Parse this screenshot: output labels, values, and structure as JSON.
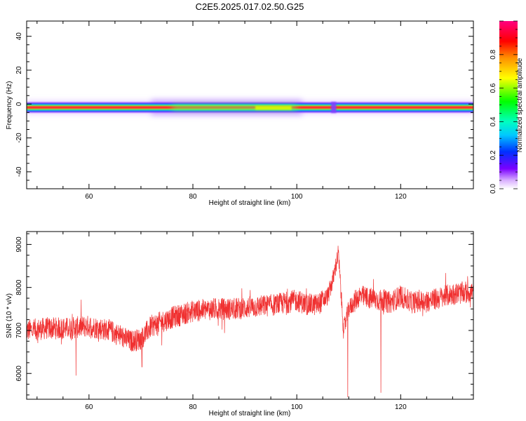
{
  "title": "C2E5.2025.017.02.50.G25",
  "chart_data": [
    {
      "type": "heatmap",
      "xlabel": "Height of straight line (km)",
      "ylabel": "Frequency (Hz)",
      "xlim": [
        48,
        134
      ],
      "ylim": [
        -50,
        49
      ],
      "x_ticks": [
        60,
        80,
        100,
        120
      ],
      "y_ticks": [
        -40,
        -20,
        0,
        20,
        40
      ],
      "grid": false,
      "colorbar": {
        "label": "Normalized spectral amplitude",
        "range": [
          0,
          1
        ],
        "ticks": [
          0.0,
          0.2,
          0.4,
          0.6,
          0.8
        ],
        "tick_labels": [
          "0.0",
          "0.2",
          "0.4",
          "0.6",
          "0.8"
        ],
        "colormap": "hsv-rainbow (white, violet, blue, cyan, green, yellow, orange, red, magenta)"
      },
      "band": {
        "center_frequency_hz": -2,
        "half_width_hz": 2.5,
        "peak_amplitude": 0.95,
        "notes": "narrow high-amplitude line near -2 Hz across all heights; broader low-amplitude spread between ~75 and ~100 km"
      }
    },
    {
      "type": "line",
      "xlabel": "Height of straight line (km)",
      "ylabel": "SNR (10 * v/v)",
      "xlim": [
        48,
        134
      ],
      "ylim": [
        5400,
        9300
      ],
      "x_ticks": [
        60,
        80,
        100,
        120
      ],
      "y_ticks": [
        6000,
        7000,
        8000,
        9000
      ],
      "grid": false,
      "series": [
        {
          "color": "#f03030",
          "x": [
            48,
            52,
            56,
            60,
            64,
            68,
            70,
            72,
            76,
            80,
            84,
            88,
            92,
            96,
            100,
            102,
            104,
            106,
            107,
            108,
            109,
            110,
            112,
            116,
            118,
            120,
            122,
            126,
            130,
            134
          ],
          "values": [
            7000,
            7050,
            7050,
            7100,
            7000,
            6750,
            6800,
            7100,
            7300,
            7450,
            7500,
            7500,
            7550,
            7600,
            7700,
            7600,
            7600,
            7800,
            8200,
            8800,
            7000,
            7500,
            7800,
            7700,
            7650,
            7800,
            7650,
            7700,
            7850,
            7900
          ],
          "dips": [
            [
              109.8,
              5450
            ],
            [
              116.2,
              5550
            ],
            [
              70.2,
              6150
            ],
            [
              57.5,
              5950
            ]
          ]
        }
      ]
    }
  ]
}
